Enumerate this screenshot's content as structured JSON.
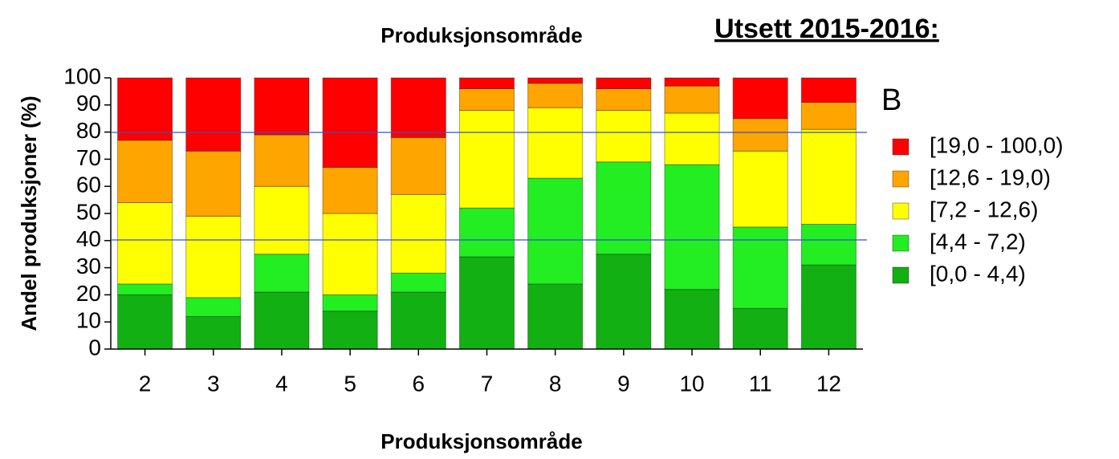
{
  "chart_data": {
    "type": "stacked_bar",
    "title": "Utsett 2015-2016:",
    "subtitle": "Produksjonsområde",
    "xlabel": "Produksjonsområde",
    "ylabel": "Andel produksjoner (%)",
    "legend_title": "B",
    "categories": [
      "2",
      "3",
      "4",
      "5",
      "6",
      "7",
      "8",
      "9",
      "10",
      "11",
      "12"
    ],
    "series": [
      {
        "name": "[0,0 - 4,4)",
        "color": "#12b012",
        "values": [
          20,
          12,
          21,
          14,
          21,
          34,
          24,
          35,
          22,
          15,
          31
        ]
      },
      {
        "name": "[4,4 - 7,2)",
        "color": "#22ee22",
        "values": [
          4,
          7,
          14,
          6,
          7,
          18,
          39,
          34,
          46,
          30,
          15
        ]
      },
      {
        "name": "[7,2 - 12,6)",
        "color": "#ffff00",
        "values": [
          30,
          30,
          25,
          30,
          29,
          36,
          26,
          19,
          19,
          28,
          35
        ]
      },
      {
        "name": "[12,6 - 19,0)",
        "color": "#ffa500",
        "values": [
          23,
          24,
          19,
          17,
          21,
          8,
          9,
          8,
          10,
          12,
          10
        ]
      },
      {
        "name": "[19,0 - 100,0)",
        "color": "#ff0000",
        "values": [
          23,
          27,
          21,
          33,
          22,
          4,
          2,
          4,
          3,
          15,
          9
        ]
      }
    ],
    "ylim": [
      0,
      100
    ],
    "yticks": [
      0,
      10,
      20,
      30,
      40,
      50,
      60,
      70,
      80,
      90,
      100
    ],
    "legend": "right"
  }
}
